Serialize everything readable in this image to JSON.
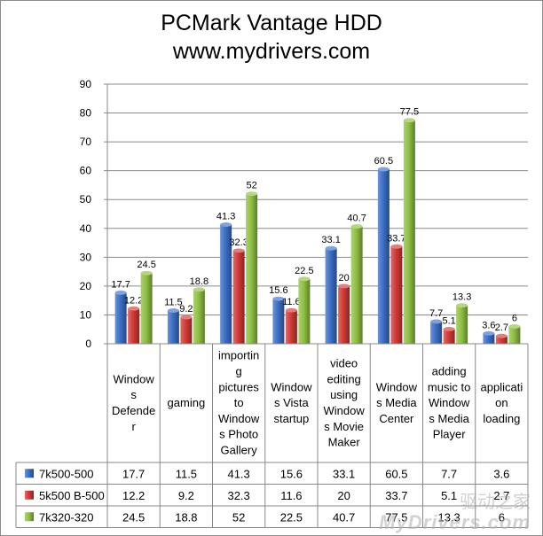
{
  "chart_data": {
    "type": "bar",
    "title": "PCMark Vantage HDD",
    "subtitle": "www.mydrivers.com",
    "ylim": [
      0,
      90
    ],
    "yticks": [
      0,
      10,
      20,
      30,
      40,
      50,
      60,
      70,
      80,
      90
    ],
    "grid": true,
    "categories": [
      [
        "Window",
        "s",
        "Defende",
        "r"
      ],
      [
        "gaming"
      ],
      [
        "importin",
        "g",
        "pictures",
        "to",
        "Window",
        "s Photo",
        "Gallery"
      ],
      [
        "Window",
        "s Vista",
        "startup"
      ],
      [
        "video",
        "editing",
        "using",
        "Window",
        "s Movie",
        "Maker"
      ],
      [
        "Window",
        "s Media",
        "Center"
      ],
      [
        "adding",
        "music to",
        "Window",
        "s Media",
        "Player"
      ],
      [
        "applicati",
        "on",
        "loading"
      ]
    ],
    "series": [
      {
        "name": "7k500-500",
        "color": "#3b6fc6",
        "values": [
          17.7,
          11.5,
          41.3,
          15.6,
          33.1,
          60.5,
          7.7,
          3.6
        ]
      },
      {
        "name": "5k500 B-500",
        "color": "#d23a36",
        "values": [
          12.2,
          9.2,
          32.3,
          11.6,
          20,
          33.7,
          5.1,
          2.7
        ]
      },
      {
        "name": "7k320-320",
        "color": "#8fc043",
        "values": [
          24.5,
          18.8,
          52,
          22.5,
          40.7,
          77.5,
          13.3,
          6
        ]
      }
    ]
  },
  "watermark": {
    "text": "MyDrivers.com",
    "cn": "驱动之家"
  }
}
